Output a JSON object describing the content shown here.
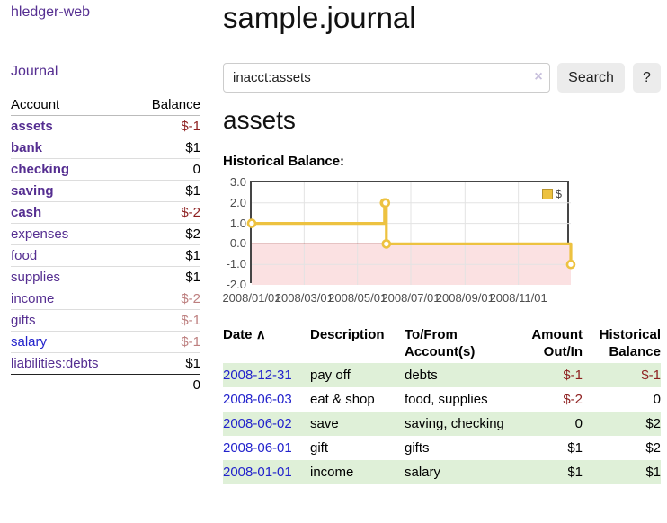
{
  "colors": {
    "link_purple": "#552e91",
    "link_blue": "#2323cc",
    "negative_strong": "#8d1f1f",
    "negative_soft": "#bd7f7f",
    "row_stripe_green": "#dff0d8",
    "button_bg": "#ececec",
    "chart_line": "#edc240"
  },
  "sidebar": {
    "brand": "hledger-web",
    "journal_link": "Journal",
    "accounts_table": {
      "headers": {
        "account": "Account",
        "balance": "Balance"
      },
      "rows": [
        {
          "label": "assets",
          "balance": "$-1",
          "depth": 1,
          "bold": true,
          "blue": false
        },
        {
          "label": "bank",
          "balance": "$1",
          "depth": 2,
          "bold": true,
          "blue": false
        },
        {
          "label": "checking",
          "balance": "0",
          "depth": 3,
          "bold": true,
          "blue": false
        },
        {
          "label": "saving",
          "balance": "$1",
          "depth": 3,
          "bold": true,
          "blue": false
        },
        {
          "label": "cash",
          "balance": "$-2",
          "depth": 2,
          "bold": true,
          "blue": false
        },
        {
          "label": "expenses",
          "balance": "$2",
          "depth": 1,
          "bold": false,
          "blue": false
        },
        {
          "label": "food",
          "balance": "$1",
          "depth": 2,
          "bold": false,
          "blue": false
        },
        {
          "label": "supplies",
          "balance": "$1",
          "depth": 2,
          "bold": false,
          "blue": false
        },
        {
          "label": "income",
          "balance": "$-2",
          "depth": 1,
          "bold": false,
          "blue": false
        },
        {
          "label": "gifts",
          "balance": "$-1",
          "depth": 2,
          "bold": false,
          "blue": false
        },
        {
          "label": "salary",
          "balance": "$-1",
          "depth": 2,
          "bold": false,
          "blue": true
        },
        {
          "label": "liabilities:debts",
          "balance": "$1",
          "depth": 1,
          "bold": false,
          "blue": false
        }
      ],
      "total": "0"
    }
  },
  "header": {
    "title": "sample.journal"
  },
  "search": {
    "value": "inacct:assets",
    "clear_icon": "×",
    "search_label": "Search",
    "help_label": "?"
  },
  "account_page": {
    "heading": "assets"
  },
  "chart_data": {
    "type": "line",
    "step": true,
    "title": "Historical Balance:",
    "legend_label": "$",
    "legend_position": "top-right",
    "grid": true,
    "series": [
      {
        "name": "$",
        "color": "#edc240",
        "points": [
          [
            "2008-01-01",
            1
          ],
          [
            "2008-06-01",
            2
          ],
          [
            "2008-06-02",
            2
          ],
          [
            "2008-06-03",
            0
          ],
          [
            "2008-12-31",
            -1
          ]
        ]
      }
    ],
    "xlim": [
      "2008-01-01",
      "2008-12-31"
    ],
    "ylim": [
      -2,
      3
    ],
    "y_ticks": [
      "3.0",
      "2.0",
      "1.0",
      "0.0",
      "-1.0",
      "-2.0"
    ],
    "x_ticks": [
      {
        "label": "2008/01/01",
        "date": "2008-01-01"
      },
      {
        "label": "2008/03/01",
        "date": "2008-03-01"
      },
      {
        "label": "2008/05/01",
        "date": "2008-05-01"
      },
      {
        "label": "2008/07/01",
        "date": "2008-07-01"
      },
      {
        "label": "2008/09/01",
        "date": "2008-09-01"
      },
      {
        "label": "2008/11/01",
        "date": "2008-11-01"
      }
    ],
    "negative_region_color": "#fbe1e2",
    "zero_line_color": "#a31616",
    "gridline_color": "#e3e3e3"
  },
  "transactions": {
    "headers": [
      "Date",
      "Description",
      "To/From Account(s)",
      "Amount Out/In",
      "Historical Balance"
    ],
    "sort_icon": "∧",
    "rows": [
      {
        "date": "2008-12-31",
        "description": "pay off",
        "accounts": "debts",
        "amount": "$-1",
        "balance": "$-1"
      },
      {
        "date": "2008-06-03",
        "description": "eat & shop",
        "accounts": "food, supplies",
        "amount": "$-2",
        "balance": "0"
      },
      {
        "date": "2008-06-02",
        "description": "save",
        "accounts": "saving, checking",
        "amount": "0",
        "balance": "$2"
      },
      {
        "date": "2008-06-01",
        "description": "gift",
        "accounts": "gifts",
        "amount": "$1",
        "balance": "$2"
      },
      {
        "date": "2008-01-01",
        "description": "income",
        "accounts": "salary",
        "amount": "$1",
        "balance": "$1"
      }
    ]
  }
}
